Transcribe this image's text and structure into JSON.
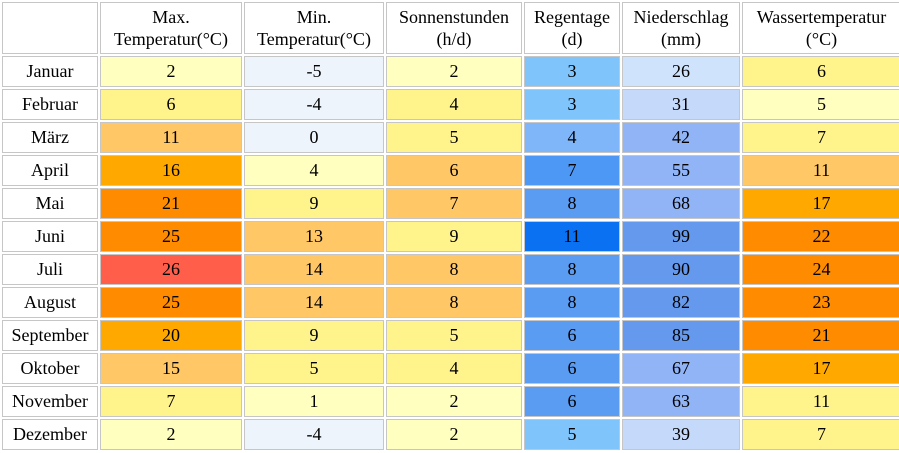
{
  "chart_data": {
    "type": "table",
    "columns": [
      {
        "key": "max",
        "line1": "Max.",
        "line2": "Temperatur(°C)"
      },
      {
        "key": "min",
        "line1": "Min.",
        "line2": "Temperatur(°C)"
      },
      {
        "key": "sun",
        "line1": "Sonnenstunden",
        "line2": "(h/d)"
      },
      {
        "key": "rain_days",
        "line1": "Regentage",
        "line2": "(d)"
      },
      {
        "key": "precip",
        "line1": "Niederschlag",
        "line2": "(mm)"
      },
      {
        "key": "water",
        "line1": "Wassertemperatur",
        "line2": "(°C)"
      }
    ],
    "rows": [
      {
        "month": "Januar",
        "values": [
          "2",
          "-5",
          "2",
          "3",
          "26",
          "6"
        ],
        "colors": [
          "#ffffbf",
          "#eef4fc",
          "#ffffbf",
          "#7fc4fb",
          "#cfe4fc",
          "#fff38c"
        ]
      },
      {
        "month": "Februar",
        "values": [
          "6",
          "-4",
          "4",
          "3",
          "31",
          "5"
        ],
        "colors": [
          "#fff38c",
          "#eef4fc",
          "#fff38c",
          "#7fc4fb",
          "#c5dafa",
          "#ffffbf"
        ]
      },
      {
        "month": "März",
        "values": [
          "11",
          "0",
          "5",
          "4",
          "42",
          "7"
        ],
        "colors": [
          "#ffc765",
          "#eef4fc",
          "#fff38c",
          "#7fb6f9",
          "#90b4f6",
          "#fff38c"
        ]
      },
      {
        "month": "April",
        "values": [
          "16",
          "4",
          "6",
          "7",
          "55",
          "11"
        ],
        "colors": [
          "#ffa800",
          "#ffffbf",
          "#ffc765",
          "#4e98f5",
          "#90b4f6",
          "#ffc765"
        ]
      },
      {
        "month": "Mai",
        "values": [
          "21",
          "9",
          "7",
          "8",
          "68",
          "17"
        ],
        "colors": [
          "#ff8c00",
          "#fff38c",
          "#ffc765",
          "#5a9cf2",
          "#90b4f6",
          "#ffa800"
        ]
      },
      {
        "month": "Juni",
        "values": [
          "25",
          "13",
          "9",
          "11",
          "99",
          "22"
        ],
        "colors": [
          "#ff8c00",
          "#ffc765",
          "#fff38c",
          "#0a72f2",
          "#6499ee",
          "#ff8c00"
        ]
      },
      {
        "month": "Juli",
        "values": [
          "26",
          "14",
          "8",
          "8",
          "90",
          "24"
        ],
        "colors": [
          "#ff5f4a",
          "#ffc765",
          "#ffc765",
          "#5a9cf2",
          "#6499ee",
          "#ff8c00"
        ]
      },
      {
        "month": "August",
        "values": [
          "25",
          "14",
          "8",
          "8",
          "82",
          "23"
        ],
        "colors": [
          "#ff8c00",
          "#ffc765",
          "#ffc765",
          "#5a9cf2",
          "#6499ee",
          "#ff8c00"
        ]
      },
      {
        "month": "September",
        "values": [
          "20",
          "9",
          "5",
          "6",
          "85",
          "21"
        ],
        "colors": [
          "#ffa800",
          "#fff38c",
          "#fff38c",
          "#5a9cf2",
          "#6499ee",
          "#ff8c00"
        ]
      },
      {
        "month": "Oktober",
        "values": [
          "15",
          "5",
          "4",
          "6",
          "67",
          "17"
        ],
        "colors": [
          "#ffc765",
          "#fff38c",
          "#fff38c",
          "#5a9cf2",
          "#90b4f6",
          "#ffa800"
        ]
      },
      {
        "month": "November",
        "values": [
          "7",
          "1",
          "2",
          "6",
          "63",
          "11"
        ],
        "colors": [
          "#fff38c",
          "#ffffbf",
          "#ffffbf",
          "#5a9cf2",
          "#90b4f6",
          "#fff38c"
        ]
      },
      {
        "month": "Dezember",
        "values": [
          "2",
          "-4",
          "2",
          "5",
          "39",
          "7"
        ],
        "colors": [
          "#ffffbf",
          "#eef4fc",
          "#ffffbf",
          "#7fc4fb",
          "#c5dafa",
          "#fff38c"
        ]
      }
    ]
  }
}
